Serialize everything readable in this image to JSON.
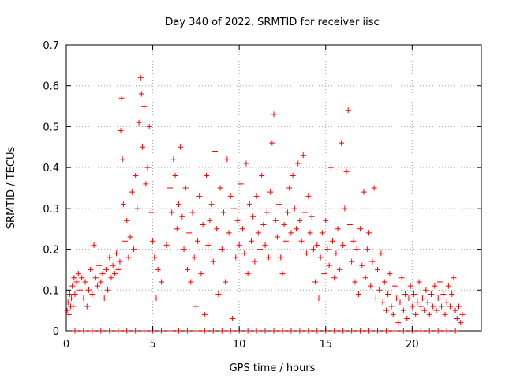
{
  "chart_data": {
    "type": "scatter",
    "title": "Day 340 of 2022, SRMTID for receiver iisc",
    "xlabel": "GPS time / hours",
    "ylabel": "SRMTID / TECUs",
    "xlim": [
      0,
      24
    ],
    "ylim": [
      0,
      0.7
    ],
    "xticks": [
      "0",
      "5",
      "10",
      "15",
      "20"
    ],
    "yticks": [
      "0",
      "0.1",
      "0.2",
      "0.3",
      "0.4",
      "0.5",
      "0.6",
      "0.7"
    ],
    "grid": true,
    "marker": "+",
    "color": "#ff0000",
    "series": [
      {
        "name": "SRMTID",
        "points": [
          [
            0.05,
            0.05
          ],
          [
            0.1,
            0.07
          ],
          [
            0.15,
            0.04
          ],
          [
            0.2,
            0.09
          ],
          [
            0.25,
            0.06
          ],
          [
            0.3,
            0.08
          ],
          [
            0.35,
            0.11
          ],
          [
            0.4,
            0.06
          ],
          [
            0.45,
            0.13
          ],
          [
            0.5,
            0.09
          ],
          [
            0.6,
            0.12
          ],
          [
            0.7,
            0.14
          ],
          [
            0.8,
            0.1
          ],
          [
            0.9,
            0.13
          ],
          [
            1.0,
            0.08
          ],
          [
            1.1,
            0.12
          ],
          [
            1.2,
            0.06
          ],
          [
            1.3,
            0.1
          ],
          [
            1.4,
            0.15
          ],
          [
            1.5,
            0.09
          ],
          [
            1.6,
            0.21
          ],
          [
            1.7,
            0.13
          ],
          [
            1.8,
            0.11
          ],
          [
            1.9,
            0.16
          ],
          [
            2.0,
            0.12
          ],
          [
            2.1,
            0.14
          ],
          [
            2.2,
            0.08
          ],
          [
            2.3,
            0.15
          ],
          [
            2.4,
            0.1
          ],
          [
            2.5,
            0.18
          ],
          [
            2.6,
            0.13
          ],
          [
            2.7,
            0.16
          ],
          [
            2.8,
            0.14
          ],
          [
            2.9,
            0.19
          ],
          [
            3.0,
            0.15
          ],
          [
            3.1,
            0.17
          ],
          [
            3.15,
            0.49
          ],
          [
            3.2,
            0.57
          ],
          [
            3.25,
            0.42
          ],
          [
            3.3,
            0.31
          ],
          [
            3.4,
            0.22
          ],
          [
            3.5,
            0.27
          ],
          [
            3.6,
            0.18
          ],
          [
            3.7,
            0.23
          ],
          [
            3.8,
            0.34
          ],
          [
            3.9,
            0.2
          ],
          [
            4.0,
            0.38
          ],
          [
            4.1,
            0.3
          ],
          [
            4.2,
            0.51
          ],
          [
            4.3,
            0.62
          ],
          [
            4.35,
            0.58
          ],
          [
            4.4,
            0.45
          ],
          [
            4.5,
            0.55
          ],
          [
            4.6,
            0.36
          ],
          [
            4.7,
            0.4
          ],
          [
            4.8,
            0.5
          ],
          [
            4.9,
            0.29
          ],
          [
            5.0,
            0.22
          ],
          [
            5.1,
            0.18
          ],
          [
            5.2,
            0.08
          ],
          [
            5.3,
            0.15
          ],
          [
            5.5,
            0.12
          ],
          [
            5.8,
            0.21
          ],
          [
            6.0,
            0.35
          ],
          [
            6.1,
            0.29
          ],
          [
            6.2,
            0.42
          ],
          [
            6.3,
            0.38
          ],
          [
            6.4,
            0.25
          ],
          [
            6.5,
            0.31
          ],
          [
            6.6,
            0.45
          ],
          [
            6.7,
            0.28
          ],
          [
            6.8,
            0.2
          ],
          [
            6.9,
            0.35
          ],
          [
            7.0,
            0.15
          ],
          [
            7.1,
            0.24
          ],
          [
            7.2,
            0.12
          ],
          [
            7.3,
            0.29
          ],
          [
            7.4,
            0.18
          ],
          [
            7.5,
            0.06
          ],
          [
            7.6,
            0.22
          ],
          [
            7.7,
            0.33
          ],
          [
            7.8,
            0.14
          ],
          [
            7.9,
            0.26
          ],
          [
            8.0,
            0.04
          ],
          [
            8.1,
            0.38
          ],
          [
            8.2,
            0.21
          ],
          [
            8.3,
            0.27
          ],
          [
            8.4,
            0.31
          ],
          [
            8.5,
            0.17
          ],
          [
            8.6,
            0.44
          ],
          [
            8.7,
            0.25
          ],
          [
            8.8,
            0.09
          ],
          [
            8.9,
            0.35
          ],
          [
            9.0,
            0.2
          ],
          [
            9.1,
            0.29
          ],
          [
            9.2,
            0.12
          ],
          [
            9.3,
            0.42
          ],
          [
            9.4,
            0.24
          ],
          [
            9.5,
            0.33
          ],
          [
            9.6,
            0.03
          ],
          [
            9.7,
            0.3
          ],
          [
            9.8,
            0.18
          ],
          [
            9.9,
            0.27
          ],
          [
            10.0,
            0.21
          ],
          [
            10.1,
            0.36
          ],
          [
            10.2,
            0.25
          ],
          [
            10.3,
            0.19
          ],
          [
            10.4,
            0.41
          ],
          [
            10.5,
            0.14
          ],
          [
            10.6,
            0.31
          ],
          [
            10.7,
            0.22
          ],
          [
            10.8,
            0.28
          ],
          [
            10.9,
            0.17
          ],
          [
            11.0,
            0.33
          ],
          [
            11.1,
            0.24
          ],
          [
            11.2,
            0.2
          ],
          [
            11.3,
            0.38
          ],
          [
            11.4,
            0.26
          ],
          [
            11.5,
            0.21
          ],
          [
            11.6,
            0.29
          ],
          [
            11.7,
            0.18
          ],
          [
            11.8,
            0.34
          ],
          [
            11.9,
            0.46
          ],
          [
            12.0,
            0.53
          ],
          [
            12.1,
            0.27
          ],
          [
            12.2,
            0.23
          ],
          [
            12.3,
            0.31
          ],
          [
            12.4,
            0.18
          ],
          [
            12.5,
            0.14
          ],
          [
            12.6,
            0.26
          ],
          [
            12.7,
            0.22
          ],
          [
            12.8,
            0.29
          ],
          [
            12.9,
            0.35
          ],
          [
            13.0,
            0.24
          ],
          [
            13.1,
            0.38
          ],
          [
            13.2,
            0.3
          ],
          [
            13.3,
            0.25
          ],
          [
            13.4,
            0.41
          ],
          [
            13.5,
            0.27
          ],
          [
            13.6,
            0.22
          ],
          [
            13.7,
            0.43
          ],
          [
            13.8,
            0.29
          ],
          [
            13.9,
            0.19
          ],
          [
            14.0,
            0.33
          ],
          [
            14.1,
            0.24
          ],
          [
            14.2,
            0.28
          ],
          [
            14.3,
            0.2
          ],
          [
            14.4,
            0.12
          ],
          [
            14.5,
            0.21
          ],
          [
            14.6,
            0.08
          ],
          [
            14.7,
            0.18
          ],
          [
            14.8,
            0.24
          ],
          [
            14.9,
            0.14
          ],
          [
            15.0,
            0.27
          ],
          [
            15.1,
            0.2
          ],
          [
            15.2,
            0.16
          ],
          [
            15.3,
            0.4
          ],
          [
            15.4,
            0.22
          ],
          [
            15.5,
            0.13
          ],
          [
            15.6,
            0.19
          ],
          [
            15.7,
            0.25
          ],
          [
            15.8,
            0.15
          ],
          [
            15.9,
            0.46
          ],
          [
            16.0,
            0.21
          ],
          [
            16.1,
            0.3
          ],
          [
            16.2,
            0.39
          ],
          [
            16.3,
            0.54
          ],
          [
            16.4,
            0.26
          ],
          [
            16.5,
            0.17
          ],
          [
            16.6,
            0.22
          ],
          [
            16.7,
            0.12
          ],
          [
            16.8,
            0.2
          ],
          [
            16.9,
            0.09
          ],
          [
            17.0,
            0.25
          ],
          [
            17.1,
            0.16
          ],
          [
            17.2,
            0.34
          ],
          [
            17.3,
            0.13
          ],
          [
            17.4,
            0.2
          ],
          [
            17.5,
            0.24
          ],
          [
            17.6,
            0.11
          ],
          [
            17.7,
            0.17
          ],
          [
            17.8,
            0.35
          ],
          [
            17.9,
            0.08
          ],
          [
            18.0,
            0.15
          ],
          [
            18.1,
            0.1
          ],
          [
            18.2,
            0.19
          ],
          [
            18.3,
            0.07
          ],
          [
            18.4,
            0.12
          ],
          [
            18.5,
            0.05
          ],
          [
            18.6,
            0.09
          ],
          [
            18.7,
            0.14
          ],
          [
            18.8,
            0.06
          ],
          [
            18.9,
            0.04
          ],
          [
            19.0,
            0.11
          ],
          [
            19.1,
            0.08
          ],
          [
            19.2,
            0.02
          ],
          [
            19.3,
            0.07
          ],
          [
            19.4,
            0.13
          ],
          [
            19.5,
            0.05
          ],
          [
            19.6,
            0.09
          ],
          [
            19.7,
            0.03
          ],
          [
            19.8,
            0.08
          ],
          [
            19.9,
            0.11
          ],
          [
            20.0,
            0.06
          ],
          [
            20.1,
            0.09
          ],
          [
            20.2,
            0.04
          ],
          [
            20.3,
            0.07
          ],
          [
            20.4,
            0.12
          ],
          [
            20.5,
            0.06
          ],
          [
            20.6,
            0.08
          ],
          [
            20.7,
            0.05
          ],
          [
            20.8,
            0.1
          ],
          [
            20.9,
            0.07
          ],
          [
            21.0,
            0.04
          ],
          [
            21.1,
            0.09
          ],
          [
            21.2,
            0.06
          ],
          [
            21.3,
            0.11
          ],
          [
            21.4,
            0.05
          ],
          [
            21.5,
            0.08
          ],
          [
            21.6,
            0.12
          ],
          [
            21.7,
            0.06
          ],
          [
            21.8,
            0.09
          ],
          [
            21.9,
            0.04
          ],
          [
            22.0,
            0.07
          ],
          [
            22.1,
            0.11
          ],
          [
            22.2,
            0.06
          ],
          [
            22.3,
            0.09
          ],
          [
            22.4,
            0.13
          ],
          [
            22.5,
            0.05
          ],
          [
            22.6,
            0.03
          ],
          [
            22.7,
            0.06
          ],
          [
            22.8,
            0.02
          ],
          [
            22.9,
            0.04
          ],
          [
            0.5,
            0
          ],
          [
            1.0,
            0
          ],
          [
            1.5,
            0
          ],
          [
            2.0,
            0
          ],
          [
            2.5,
            0
          ],
          [
            3.0,
            0
          ],
          [
            3.5,
            0
          ],
          [
            4.0,
            0
          ],
          [
            4.5,
            0
          ],
          [
            5.0,
            0
          ],
          [
            5.5,
            0
          ],
          [
            6.0,
            0
          ],
          [
            6.5,
            0
          ],
          [
            7.0,
            0
          ],
          [
            7.5,
            0
          ],
          [
            8.0,
            0
          ],
          [
            8.5,
            0
          ],
          [
            9.0,
            0
          ],
          [
            9.5,
            0
          ],
          [
            10.0,
            0
          ],
          [
            10.5,
            0
          ],
          [
            11.0,
            0
          ],
          [
            11.5,
            0
          ],
          [
            12.0,
            0
          ],
          [
            12.5,
            0
          ],
          [
            13.0,
            0
          ],
          [
            13.5,
            0
          ],
          [
            14.0,
            0
          ],
          [
            14.5,
            0
          ],
          [
            15.0,
            0
          ],
          [
            15.5,
            0
          ],
          [
            16.0,
            0
          ],
          [
            16.5,
            0
          ],
          [
            17.0,
            0
          ],
          [
            17.5,
            0
          ],
          [
            18.0,
            0
          ],
          [
            18.5,
            0
          ],
          [
            19.0,
            0
          ],
          [
            19.5,
            0
          ],
          [
            20.0,
            0
          ],
          [
            20.5,
            0
          ],
          [
            21.0,
            0
          ],
          [
            21.5,
            0
          ],
          [
            22.0,
            0
          ],
          [
            22.5,
            0
          ]
        ]
      }
    ]
  }
}
